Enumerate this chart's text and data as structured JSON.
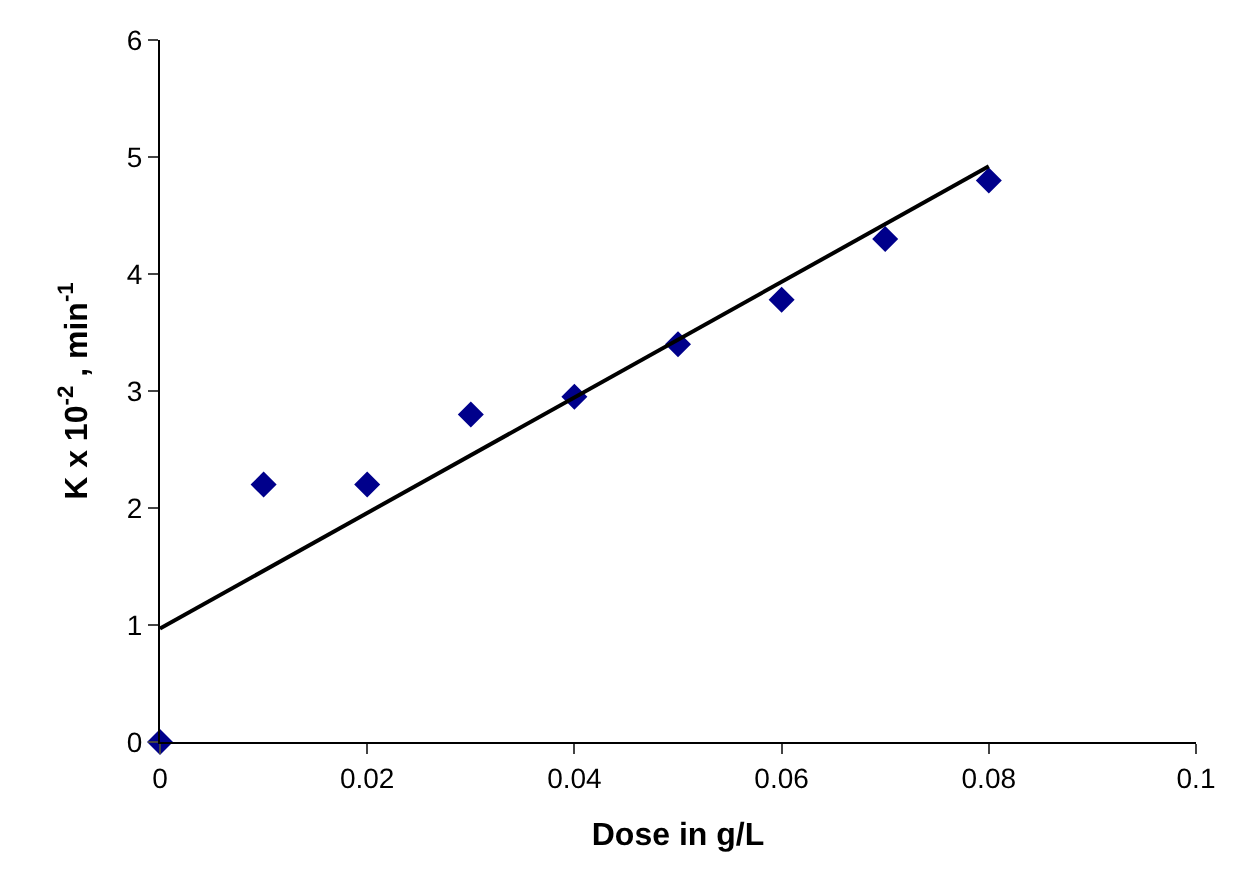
{
  "chart_data": {
    "type": "scatter",
    "xlabel": "Dose in g/L",
    "ylabel": "K x 10$^{-2}$ , min$^{-1}$",
    "x": [
      0,
      0.01,
      0.02,
      0.03,
      0.04,
      0.05,
      0.06,
      0.07,
      0.08
    ],
    "series": [
      {
        "color": "#00008b",
        "values": [
          0,
          2.2,
          2.2,
          2.8,
          2.95,
          3.4,
          3.78,
          4.3,
          4.8
        ],
        "marker": "diamond"
      },
      {
        "type": "line",
        "color": "#000000",
        "x": [
          0,
          0.08
        ],
        "values": [
          0.97,
          4.92
        ],
        "marker": "none"
      }
    ],
    "xlim": [
      0,
      0.1
    ],
    "xticks": [
      {
        "value": 0,
        "label": "0"
      },
      0.02,
      0.04,
      0.06,
      0.08,
      0.1
    ],
    "ylim": [
      0,
      6
    ],
    "yticks": [
      0,
      1,
      2,
      3,
      4,
      5,
      6
    ],
    "legend": false
  }
}
